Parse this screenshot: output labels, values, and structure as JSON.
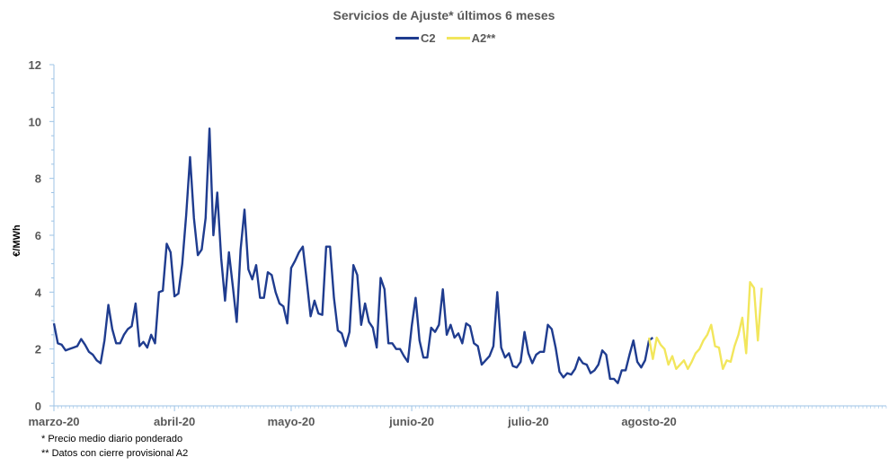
{
  "chart_data": {
    "type": "line",
    "title": "Servicios de Ajuste* últimos 6 meses",
    "ylabel": "€/MWh",
    "xlabel": "",
    "ylim": [
      0,
      12
    ],
    "yticks": [
      "0",
      "2",
      "4",
      "6",
      "8",
      "10",
      "12"
    ],
    "x_tick_labels": [
      "marzo-20",
      "abril-20",
      "mayo-20",
      "junio-20",
      "julio-20",
      "agosto-20"
    ],
    "legend_position": "top-center",
    "grid": false,
    "colors": {
      "C2": "#1f3c8f",
      "A2": "#f2e65c",
      "axis": "#9dc3e6"
    },
    "series": [
      {
        "name": "C2",
        "start_date": "2020-03-01",
        "values": [
          2.9,
          2.2,
          2.15,
          1.95,
          2.0,
          2.05,
          2.1,
          2.35,
          2.15,
          1.9,
          1.8,
          1.6,
          1.5,
          2.3,
          3.55,
          2.7,
          2.2,
          2.2,
          2.5,
          2.7,
          2.8,
          3.6,
          2.1,
          2.25,
          2.05,
          2.5,
          2.2,
          4.0,
          4.05,
          5.7,
          5.4,
          3.85,
          3.95,
          5.0,
          6.7,
          8.75,
          6.6,
          5.3,
          5.5,
          6.6,
          9.75,
          6.0,
          7.5,
          5.2,
          3.7,
          5.4,
          4.2,
          2.95,
          5.5,
          6.9,
          4.8,
          4.45,
          4.95,
          3.8,
          3.8,
          4.7,
          4.6,
          4.0,
          3.6,
          3.5,
          2.9,
          4.85,
          5.1,
          5.4,
          5.6,
          4.4,
          3.15,
          3.7,
          3.25,
          3.2,
          5.6,
          5.6,
          3.8,
          2.65,
          2.55,
          2.1,
          2.6,
          4.95,
          4.6,
          2.85,
          3.6,
          2.95,
          2.75,
          2.05,
          4.5,
          4.1,
          2.2,
          2.2,
          2.0,
          2.0,
          1.75,
          1.55,
          2.8,
          3.8,
          2.3,
          1.7,
          1.7,
          2.75,
          2.6,
          2.85,
          4.1,
          2.5,
          2.85,
          2.4,
          2.55,
          2.2,
          2.9,
          2.8,
          2.2,
          2.1,
          1.45,
          1.6,
          1.75,
          2.1,
          4.0,
          2.05,
          1.7,
          1.85,
          1.4,
          1.35,
          1.55,
          2.6,
          1.85,
          1.5,
          1.8,
          1.9,
          1.9,
          2.85,
          2.7,
          2.05,
          1.2,
          1.0,
          1.15,
          1.1,
          1.3,
          1.7,
          1.5,
          1.45,
          1.15,
          1.25,
          1.45,
          1.95,
          1.8,
          0.95,
          0.95,
          0.8,
          1.25,
          1.25,
          1.8,
          2.3,
          1.55,
          1.35,
          1.6,
          2.3,
          2.4
        ]
      },
      {
        "name": "A2**",
        "start_date": "2020-08-01",
        "values": [
          2.4,
          1.65,
          2.4,
          2.15,
          2.0,
          1.45,
          1.75,
          1.3,
          1.45,
          1.6,
          1.3,
          1.55,
          1.85,
          2.0,
          2.3,
          2.5,
          2.85,
          2.1,
          2.05,
          1.3,
          1.6,
          1.55,
          2.1,
          2.5,
          3.1,
          1.85,
          4.35,
          4.15,
          2.3,
          4.15
        ]
      }
    ]
  },
  "footnotes": {
    "note1": "* Precio medio diario ponderado",
    "note2": "** Datos con cierre provisional A2"
  }
}
